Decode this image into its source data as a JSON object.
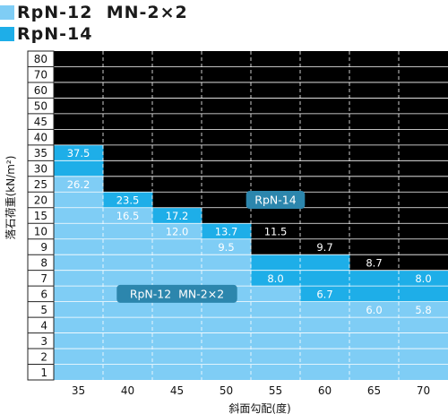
{
  "legend": [
    {
      "label": "RpN-12  MN-2×2",
      "color": "#7fcdf5"
    },
    {
      "label": "RpN-14",
      "color": "#1eaee8"
    }
  ],
  "chart_data": {
    "type": "heatmap",
    "xlabel": "斜面勾配(度)",
    "ylabel": "落石荷重(kN/m²)",
    "x_categories": [
      "35",
      "40",
      "45",
      "50",
      "55",
      "60",
      "65",
      "70"
    ],
    "y_categories": [
      "1",
      "2",
      "3",
      "4",
      "5",
      "6",
      "7",
      "8",
      "9",
      "10",
      "15",
      "20",
      "25",
      "30",
      "35",
      "40",
      "45",
      "50",
      "60",
      "70",
      "80"
    ],
    "series": [
      {
        "name": "RpN-12  MN-2×2",
        "color": "#7fcdf5",
        "values": [
          "25",
          "15",
          "10",
          "9",
          "6",
          "5",
          "5",
          "5"
        ]
      },
      {
        "name": "RpN-14",
        "color": "#1eaee8",
        "values": [
          "35",
          "20",
          "15",
          "10",
          "8",
          "8",
          "7",
          "7"
        ]
      }
    ],
    "data_labels": [
      {
        "x": "35",
        "y": "35",
        "text": "37.5"
      },
      {
        "x": "35",
        "y": "25",
        "text": "26.2"
      },
      {
        "x": "40",
        "y": "20",
        "text": "23.5"
      },
      {
        "x": "40",
        "y": "15",
        "text": "16.5"
      },
      {
        "x": "45",
        "y": "15",
        "text": "17.2"
      },
      {
        "x": "45",
        "y": "10",
        "text": "12.0"
      },
      {
        "x": "50",
        "y": "10",
        "text": "13.7"
      },
      {
        "x": "50",
        "y": "9",
        "text": "9.5"
      },
      {
        "x": "55",
        "y": "10",
        "text": "11.5"
      },
      {
        "x": "55",
        "y": "7",
        "text": "8.0"
      },
      {
        "x": "60",
        "y": "9",
        "text": "9.7"
      },
      {
        "x": "60",
        "y": "6",
        "text": "6.7"
      },
      {
        "x": "65",
        "y": "8",
        "text": "8.7"
      },
      {
        "x": "65",
        "y": "5",
        "text": "6.0"
      },
      {
        "x": "70",
        "y": "7",
        "text": "8.0"
      },
      {
        "x": "70",
        "y": "5",
        "text": "5.8"
      }
    ],
    "annotations": [
      {
        "text": "RpN-14",
        "x": "55",
        "y": "20"
      },
      {
        "text": "RpN-12  MN-2×2",
        "x": "45",
        "y": "6"
      }
    ],
    "colors": {
      "outside": "#000000",
      "grid": "#ffffff"
    }
  }
}
